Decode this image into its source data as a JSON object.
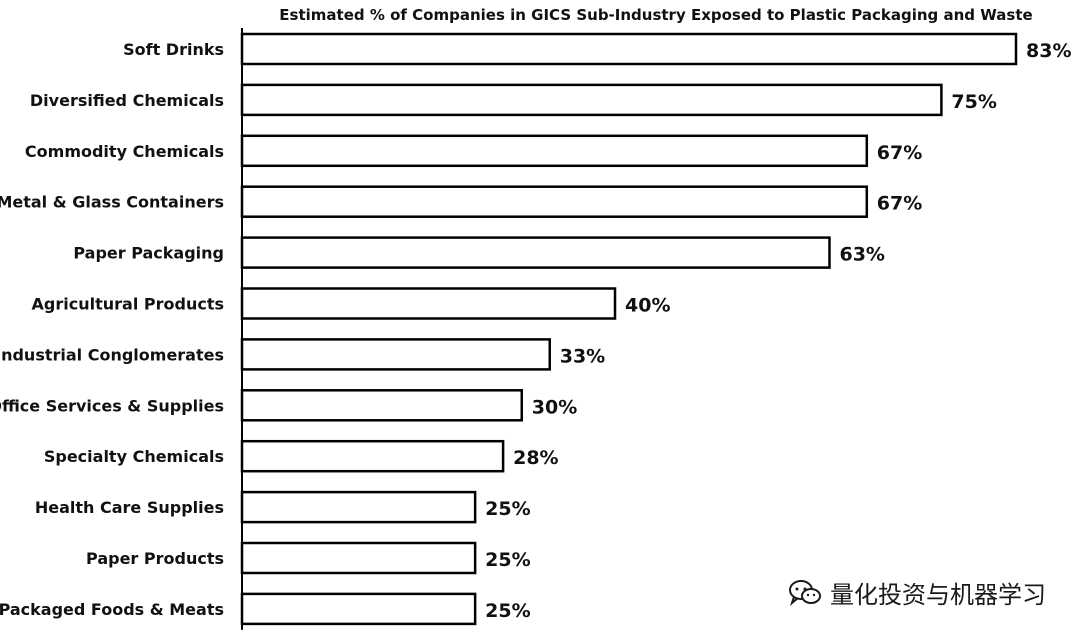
{
  "chart_data": {
    "type": "bar",
    "orientation": "horizontal",
    "title": "Estimated % of Companies in GICS Sub-Industry Exposed to Plastic Packaging and Waste",
    "categories": [
      "Soft Drinks",
      "Diversified Chemicals",
      "Commodity Chemicals",
      "Metal & Glass Containers",
      "Paper Packaging",
      "Agricultural Products",
      "Industrial Conglomerates",
      "Office Services & Supplies",
      "Specialty Chemicals",
      "Health Care Supplies",
      "Paper Products",
      "Packaged Foods & Meats"
    ],
    "values": [
      83,
      75,
      67,
      67,
      63,
      40,
      33,
      30,
      28,
      25,
      25,
      25
    ],
    "value_labels": [
      "83%",
      "75%",
      "67%",
      "67%",
      "63%",
      "40%",
      "33%",
      "30%",
      "28%",
      "25%",
      "25%",
      "25%"
    ],
    "xlim": [
      0,
      83
    ],
    "grid": false,
    "legend": "none",
    "bar_fill": "#ffffff",
    "bar_stroke": "#000000"
  },
  "watermark": {
    "text": "量化投资与机器学习",
    "icon": "wechat-icon"
  }
}
